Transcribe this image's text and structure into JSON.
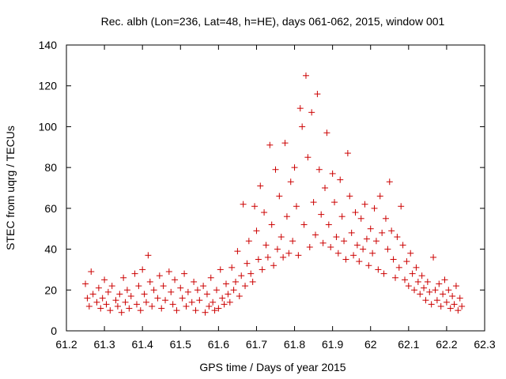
{
  "chart_data": {
    "type": "scatter",
    "title": "Rec. albh (Lon=236, Lat=48, h=HE), days 061-062, 2015, window 001",
    "xlabel": "GPS time / Days of year 2015",
    "ylabel": "STEC from uqrg / TECUs",
    "xlim": [
      61.2,
      62.3
    ],
    "ylim": [
      0,
      140
    ],
    "xticks": [
      "61.2",
      "61.3",
      "61.4",
      "61.5",
      "61.6",
      "61.7",
      "61.8",
      "61.9",
      "62",
      "62.1",
      "62.2",
      "62.3"
    ],
    "yticks": [
      "0",
      "20",
      "40",
      "60",
      "80",
      "100",
      "120",
      "140"
    ],
    "grid": false,
    "marker": "+",
    "color": "#cc0000",
    "series": [
      {
        "points": [
          [
            61.25,
            23
          ],
          [
            61.255,
            16
          ],
          [
            61.26,
            12
          ],
          [
            61.265,
            29
          ],
          [
            61.27,
            18
          ],
          [
            61.28,
            14
          ],
          [
            61.285,
            21
          ],
          [
            61.29,
            11
          ],
          [
            61.295,
            16
          ],
          [
            61.3,
            25
          ],
          [
            61.305,
            13
          ],
          [
            61.31,
            19
          ],
          [
            61.315,
            10
          ],
          [
            61.32,
            22
          ],
          [
            61.33,
            15
          ],
          [
            61.335,
            12
          ],
          [
            61.34,
            18
          ],
          [
            61.345,
            9
          ],
          [
            61.35,
            26
          ],
          [
            61.355,
            14
          ],
          [
            61.36,
            20
          ],
          [
            61.365,
            11
          ],
          [
            61.37,
            17
          ],
          [
            61.38,
            28
          ],
          [
            61.385,
            13
          ],
          [
            61.39,
            22
          ],
          [
            61.395,
            10
          ],
          [
            61.4,
            30
          ],
          [
            61.405,
            18
          ],
          [
            61.41,
            14
          ],
          [
            61.415,
            37
          ],
          [
            61.42,
            24
          ],
          [
            61.425,
            12
          ],
          [
            61.43,
            20
          ],
          [
            61.44,
            16
          ],
          [
            61.445,
            27
          ],
          [
            61.45,
            11
          ],
          [
            61.455,
            22
          ],
          [
            61.46,
            15
          ],
          [
            61.47,
            29
          ],
          [
            61.475,
            19
          ],
          [
            61.48,
            13
          ],
          [
            61.485,
            25
          ],
          [
            61.49,
            10
          ],
          [
            61.5,
            21
          ],
          [
            61.505,
            16
          ],
          [
            61.51,
            28
          ],
          [
            61.515,
            12
          ],
          [
            61.52,
            19
          ],
          [
            61.53,
            14
          ],
          [
            61.535,
            24
          ],
          [
            61.54,
            10
          ],
          [
            61.545,
            20
          ],
          [
            61.55,
            15
          ],
          [
            61.56,
            22
          ],
          [
            61.565,
            9
          ],
          [
            61.57,
            18
          ],
          [
            61.575,
            12
          ],
          [
            61.58,
            26
          ],
          [
            61.585,
            14
          ],
          [
            61.59,
            10
          ],
          [
            61.595,
            20
          ],
          [
            61.6,
            11
          ],
          [
            61.605,
            30
          ],
          [
            61.61,
            16
          ],
          [
            61.615,
            13
          ],
          [
            61.62,
            23
          ],
          [
            61.625,
            18
          ],
          [
            61.63,
            14
          ],
          [
            61.635,
            31
          ],
          [
            61.64,
            20
          ],
          [
            61.645,
            24
          ],
          [
            61.65,
            39
          ],
          [
            61.655,
            17
          ],
          [
            61.66,
            27
          ],
          [
            61.665,
            62
          ],
          [
            61.67,
            22
          ],
          [
            61.675,
            33
          ],
          [
            61.68,
            44
          ],
          [
            61.685,
            28
          ],
          [
            61.69,
            24
          ],
          [
            61.695,
            61
          ],
          [
            61.7,
            49
          ],
          [
            61.705,
            35
          ],
          [
            61.71,
            71
          ],
          [
            61.715,
            30
          ],
          [
            61.72,
            58
          ],
          [
            61.725,
            42
          ],
          [
            61.73,
            36
          ],
          [
            61.735,
            91
          ],
          [
            61.74,
            52
          ],
          [
            61.745,
            32
          ],
          [
            61.75,
            79
          ],
          [
            61.755,
            40
          ],
          [
            61.76,
            66
          ],
          [
            61.765,
            46
          ],
          [
            61.77,
            36
          ],
          [
            61.775,
            92
          ],
          [
            61.78,
            56
          ],
          [
            61.785,
            38
          ],
          [
            61.79,
            73
          ],
          [
            61.795,
            44
          ],
          [
            61.8,
            80
          ],
          [
            61.805,
            61
          ],
          [
            61.81,
            37
          ],
          [
            61.815,
            109
          ],
          [
            61.82,
            100
          ],
          [
            61.825,
            52
          ],
          [
            61.83,
            125
          ],
          [
            61.835,
            85
          ],
          [
            61.84,
            41
          ],
          [
            61.845,
            107
          ],
          [
            61.85,
            63
          ],
          [
            61.855,
            47
          ],
          [
            61.86,
            116
          ],
          [
            61.865,
            79
          ],
          [
            61.87,
            57
          ],
          [
            61.875,
            43
          ],
          [
            61.88,
            70
          ],
          [
            61.885,
            97
          ],
          [
            61.89,
            52
          ],
          [
            61.895,
            41
          ],
          [
            61.9,
            77
          ],
          [
            61.905,
            63
          ],
          [
            61.91,
            46
          ],
          [
            61.915,
            38
          ],
          [
            61.92,
            74
          ],
          [
            61.925,
            56
          ],
          [
            61.93,
            44
          ],
          [
            61.935,
            35
          ],
          [
            61.94,
            87
          ],
          [
            61.945,
            66
          ],
          [
            61.95,
            48
          ],
          [
            61.955,
            37
          ],
          [
            61.96,
            58
          ],
          [
            61.965,
            42
          ],
          [
            61.97,
            34
          ],
          [
            61.975,
            55
          ],
          [
            61.98,
            40
          ],
          [
            61.985,
            62
          ],
          [
            61.99,
            45
          ],
          [
            61.995,
            32
          ],
          [
            62.0,
            50
          ],
          [
            62.005,
            38
          ],
          [
            62.01,
            60
          ],
          [
            62.015,
            44
          ],
          [
            62.02,
            30
          ],
          [
            62.025,
            66
          ],
          [
            62.03,
            48
          ],
          [
            62.035,
            28
          ],
          [
            62.04,
            55
          ],
          [
            62.045,
            40
          ],
          [
            62.05,
            73
          ],
          [
            62.055,
            49
          ],
          [
            62.06,
            35
          ],
          [
            62.065,
            26
          ],
          [
            62.07,
            46
          ],
          [
            62.075,
            31
          ],
          [
            62.08,
            61
          ],
          [
            62.085,
            42
          ],
          [
            62.09,
            25
          ],
          [
            62.095,
            34
          ],
          [
            62.1,
            22
          ],
          [
            62.105,
            38
          ],
          [
            62.11,
            28
          ],
          [
            62.115,
            20
          ],
          [
            62.12,
            31
          ],
          [
            62.125,
            24
          ],
          [
            62.13,
            18
          ],
          [
            62.135,
            27
          ],
          [
            62.14,
            21
          ],
          [
            62.145,
            15
          ],
          [
            62.15,
            24
          ],
          [
            62.155,
            19
          ],
          [
            62.16,
            13
          ],
          [
            62.165,
            36
          ],
          [
            62.17,
            20
          ],
          [
            62.175,
            15
          ],
          [
            62.18,
            23
          ],
          [
            62.185,
            12
          ],
          [
            62.19,
            18
          ],
          [
            62.195,
            25
          ],
          [
            62.2,
            14
          ],
          [
            62.205,
            20
          ],
          [
            62.21,
            11
          ],
          [
            62.215,
            17
          ],
          [
            62.22,
            13
          ],
          [
            62.225,
            22
          ],
          [
            62.23,
            10
          ],
          [
            62.235,
            16
          ],
          [
            62.24,
            12
          ]
        ]
      }
    ]
  }
}
